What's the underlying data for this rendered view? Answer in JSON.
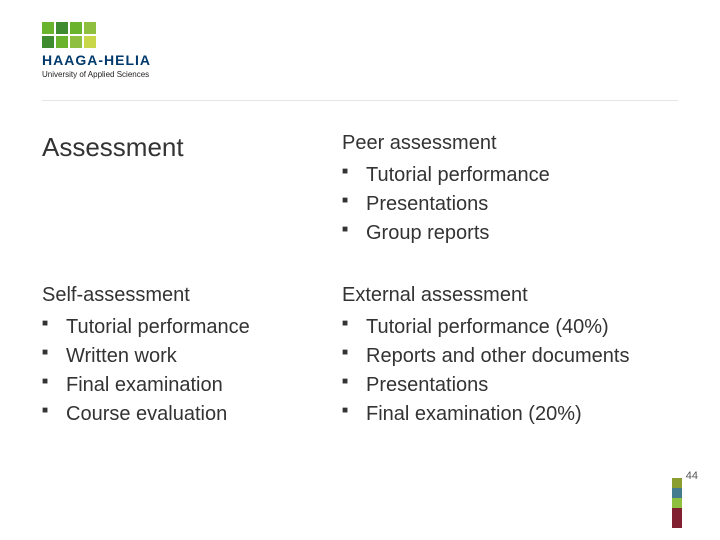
{
  "logo": {
    "name": "HAAGA-HELIA",
    "subtitle": "University of Applied Sciences",
    "squares_row1": [
      "#6ab42d",
      "#3e8c2f",
      "#6ab42d",
      "#8fbf3f"
    ],
    "squares_row2": [
      "#3e8c2f",
      "#6ab42d",
      "#8fbf3f",
      "#c8d64a"
    ],
    "text_color": "#003a6c"
  },
  "slide": {
    "main_title": "Assessment",
    "sections": {
      "top_right": {
        "heading": "Peer assessment",
        "items": [
          "Tutorial performance",
          "Presentations",
          "Group reports"
        ]
      },
      "bottom_left": {
        "heading": "Self-assessment",
        "items": [
          "Tutorial performance",
          "Written work",
          "Final examination",
          "Course evaluation"
        ]
      },
      "bottom_right": {
        "heading": "External assessment",
        "items": [
          "Tutorial performance (40%)",
          "Reports and other documents",
          "Presentations",
          "Final examination (20%)"
        ]
      }
    },
    "page_number": "44"
  },
  "footer_strip_colors": [
    "#8a9e2f",
    "#447b8f",
    "#8fbf3f",
    "#802030",
    "#802030"
  ],
  "style": {
    "background": "#ffffff",
    "text_color": "#333333",
    "title_fontsize_pt": 26,
    "body_fontsize_pt": 20,
    "bullet_marker": "■",
    "font_family": "Verdana"
  }
}
